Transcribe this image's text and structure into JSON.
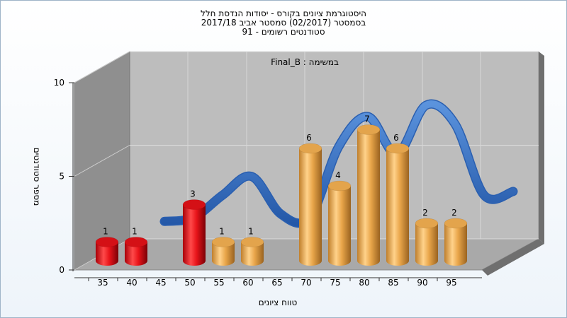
{
  "chart_data": {
    "type": "bar",
    "title_lines": [
      "היסטוגרמת ציונים בקורס - יסודות הנדסת חלל",
      "בסמסטר  (02/2017)  סמסטר אביב 2017/18",
      "סטודנטים רשומים - 91"
    ],
    "subtitle": "במשימה : Final_B",
    "xlabel": "טווח ציונים",
    "ylabel": "מספר סטודנטים",
    "x_ticks": [
      "35",
      "40",
      "45",
      "50",
      "55",
      "60",
      "65",
      "70",
      "75",
      "80",
      "85",
      "90",
      "95"
    ],
    "y_ticks": [
      "0",
      "5",
      "10"
    ],
    "ylim": [
      0,
      10
    ],
    "bars": [
      {
        "x": 35,
        "value": 1,
        "label": "1",
        "color": "red"
      },
      {
        "x": 40,
        "value": 1,
        "label": "1",
        "color": "red"
      },
      {
        "x": 50,
        "value": 3,
        "label": "3",
        "color": "red"
      },
      {
        "x": 55,
        "value": 1,
        "label": "1",
        "color": "orange"
      },
      {
        "x": 60,
        "value": 1,
        "label": "1",
        "color": "orange"
      },
      {
        "x": 70,
        "value": 6,
        "label": "6",
        "color": "orange"
      },
      {
        "x": 75,
        "value": 4,
        "label": "4",
        "color": "orange"
      },
      {
        "x": 80,
        "value": 7,
        "label": "7",
        "color": "orange"
      },
      {
        "x": 85,
        "value": 6,
        "label": "6",
        "color": "orange"
      },
      {
        "x": 90,
        "value": 2,
        "label": "2",
        "color": "orange"
      },
      {
        "x": 95,
        "value": 2,
        "label": "2",
        "color": "orange"
      }
    ],
    "distribution_curve": {
      "x": [
        40,
        45,
        50,
        55,
        60,
        65,
        70,
        75,
        80,
        85,
        90,
        95,
        100
      ],
      "values": [
        1.8,
        2.0,
        3.2,
        4.2,
        2.2,
        2.0,
        5.8,
        7.4,
        5.4,
        8.0,
        7.0,
        3.2,
        3.4
      ]
    },
    "grid": true,
    "colors": {
      "red": "#e8141a",
      "orange": "#e9a64a",
      "curve": "#2e6fc6",
      "wall": "#bdbdbd",
      "side_wall": "#8c8c8c",
      "floor": "#a8a8a8"
    }
  }
}
